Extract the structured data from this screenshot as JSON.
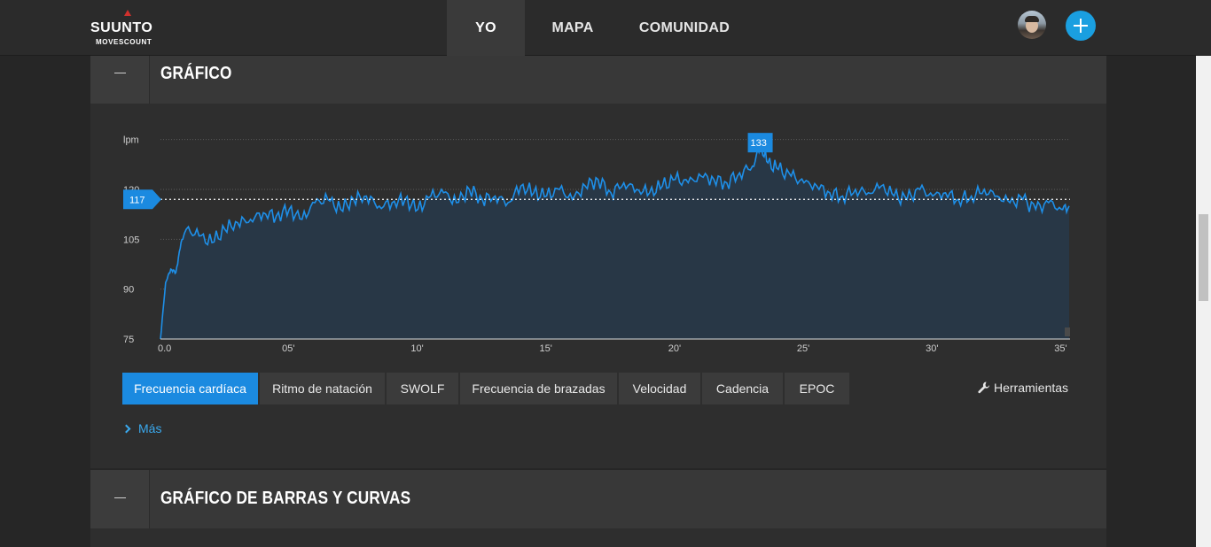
{
  "brand": {
    "name": "SUUNTO",
    "product": "MOVESCOUNT"
  },
  "nav": {
    "items": [
      {
        "label": "YO"
      },
      {
        "label": "MAPA"
      },
      {
        "label": "COMUNIDAD"
      }
    ]
  },
  "user": {
    "avatar": "user-avatar",
    "add_icon": "plus-icon"
  },
  "panels": {
    "chart": {
      "title": "GRÁFICO",
      "collapse_icon": "minus-icon"
    },
    "bars": {
      "title": "GRÁFICO DE BARRAS Y CURVAS",
      "collapse_icon": "minus-icon"
    }
  },
  "tabs": [
    {
      "label": "Frecuencia cardíaca",
      "active": true
    },
    {
      "label": "Ritmo de natación"
    },
    {
      "label": "SWOLF"
    },
    {
      "label": "Frecuencia de brazadas"
    },
    {
      "label": "Velocidad"
    },
    {
      "label": "Cadencia"
    },
    {
      "label": "EPOC"
    }
  ],
  "tools": {
    "label": "Herramientas",
    "icon": "wrench-icon"
  },
  "more": {
    "label": "Más",
    "icon": "chevron-right-icon"
  },
  "colors": {
    "accent": "#1b8ae0",
    "line": "#1e90ff",
    "fill": "#283746"
  },
  "chart_data": {
    "type": "area",
    "ylabel": "lpm",
    "y_ticks": [
      75,
      90,
      105,
      120
    ],
    "ylim": [
      75,
      135
    ],
    "x_ticks": [
      "0.0",
      "05'",
      "10'",
      "15'",
      "20'",
      "25'",
      "30'",
      "35'"
    ],
    "x_tick_values": [
      0,
      5,
      10,
      15,
      20,
      25,
      30,
      35
    ],
    "xlim": [
      0,
      35.3
    ],
    "avg_marker": 117,
    "max_marker": 133,
    "series": [
      {
        "x": [
          0,
          0.2,
          0.4,
          0.6,
          0.8,
          1,
          1.5,
          2,
          2.5,
          3,
          3.5,
          4,
          4.5,
          5,
          5.5,
          6,
          6.5,
          7,
          7.5,
          8,
          8.5,
          9,
          9.5,
          10,
          10.5,
          11,
          11.5,
          12,
          12.5,
          13,
          13.5,
          14,
          14.5,
          15,
          15.5,
          16,
          16.5,
          17,
          17.5,
          18,
          18.5,
          19,
          19.5,
          20,
          20.5,
          21,
          21.5,
          22,
          22.5,
          23,
          23.3,
          23.6,
          24,
          24.5,
          25,
          25.5,
          26,
          26.5,
          27,
          27.5,
          28,
          28.5,
          29,
          29.5,
          30,
          30.5,
          31,
          31.5,
          32,
          32.5,
          33,
          33.5,
          34,
          34.5,
          35,
          35.3
        ],
        "y": [
          75,
          92,
          96,
          95,
          104,
          108,
          106,
          104,
          108,
          110,
          111,
          113,
          112,
          114,
          111,
          116,
          117,
          114,
          117,
          118,
          115,
          116,
          117,
          114,
          118,
          119,
          116,
          120,
          117,
          118,
          116,
          121,
          119,
          118,
          120,
          117,
          121,
          123,
          119,
          122,
          120,
          119,
          121,
          123,
          122,
          124,
          123,
          122,
          125,
          127,
          133,
          128,
          126,
          124,
          122,
          121,
          119,
          118,
          120,
          119,
          121,
          118,
          117,
          120,
          118,
          119,
          117,
          118,
          120,
          118,
          116,
          117,
          114,
          116,
          114,
          115
        ]
      }
    ]
  }
}
